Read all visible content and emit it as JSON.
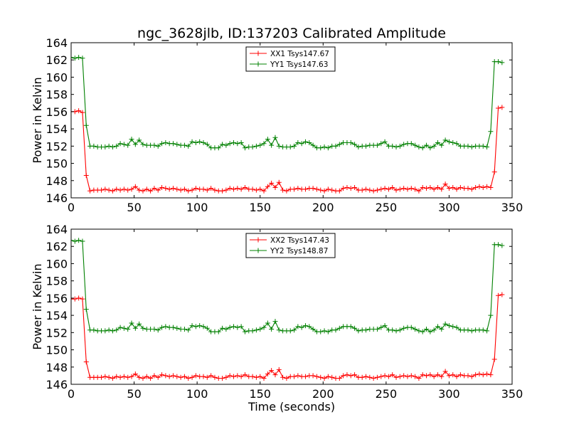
{
  "title": "ngc_3628jlb, ID:137203 Calibrated Amplitude",
  "colors": {
    "xx": "#ff0000",
    "yy": "#008000",
    "axes": "#000000",
    "background": "#ffffff"
  },
  "chart_data": [
    {
      "type": "line",
      "title": "ngc_3628jlb, ID:137203 Calibrated Amplitude",
      "xlabel": "",
      "ylabel": "Power in Kelvin",
      "xlim": [
        0,
        350
      ],
      "ylim": [
        146,
        164
      ],
      "xticks": [
        "0",
        "50",
        "100",
        "150",
        "200",
        "250",
        "300",
        "350"
      ],
      "yticks": [
        "146",
        "148",
        "150",
        "152",
        "154",
        "156",
        "158",
        "160",
        "162",
        "164"
      ],
      "grid": false,
      "legend": "top-center",
      "marker": "+",
      "x": [
        0,
        3,
        6,
        9,
        12,
        15,
        18,
        21,
        24,
        27,
        30,
        33,
        36,
        39,
        42,
        45,
        48,
        51,
        54,
        57,
        60,
        63,
        66,
        69,
        72,
        75,
        78,
        81,
        84,
        87,
        90,
        93,
        96,
        99,
        102,
        105,
        108,
        111,
        114,
        117,
        120,
        123,
        126,
        129,
        132,
        135,
        138,
        141,
        144,
        147,
        150,
        153,
        156,
        159,
        162,
        165,
        168,
        171,
        174,
        177,
        180,
        183,
        186,
        189,
        192,
        195,
        198,
        201,
        204,
        207,
        210,
        213,
        216,
        219,
        222,
        225,
        228,
        231,
        234,
        237,
        240,
        243,
        246,
        249,
        252,
        255,
        258,
        261,
        264,
        267,
        270,
        273,
        276,
        279,
        282,
        285,
        288,
        291,
        294,
        297,
        300,
        303,
        306,
        309,
        312,
        315,
        318,
        321,
        324,
        327,
        330,
        333,
        336,
        339,
        342
      ],
      "series": [
        {
          "name": "XX1 Tsys147.67",
          "color": "#ff0000",
          "values": [
            156.0,
            156.0,
            156.1,
            155.9,
            148.6,
            146.8,
            146.9,
            146.9,
            146.9,
            147.0,
            146.9,
            146.8,
            147.0,
            146.9,
            147.0,
            146.9,
            147.0,
            147.3,
            146.9,
            146.8,
            147.0,
            146.8,
            147.1,
            146.9,
            147.2,
            147.1,
            147.0,
            147.1,
            147.0,
            146.9,
            147.0,
            146.8,
            146.9,
            147.1,
            147.0,
            147.0,
            146.9,
            147.1,
            146.9,
            146.8,
            146.8,
            146.9,
            147.1,
            147.0,
            147.1,
            147.0,
            147.2,
            147.0,
            147.0,
            146.9,
            147.0,
            146.8,
            147.3,
            147.7,
            147.2,
            147.8,
            146.9,
            146.8,
            147.0,
            147.0,
            147.1,
            147.0,
            147.0,
            147.1,
            147.1,
            147.0,
            146.9,
            146.8,
            147.0,
            146.9,
            146.8,
            146.8,
            147.1,
            147.2,
            147.1,
            147.2,
            146.9,
            146.9,
            147.0,
            146.9,
            146.8,
            146.9,
            147.0,
            147.1,
            147.0,
            147.2,
            146.9,
            147.0,
            147.1,
            147.0,
            147.1,
            147.0,
            146.8,
            147.2,
            147.1,
            147.2,
            147.0,
            147.2,
            147.0,
            147.6,
            147.1,
            147.2,
            147.0,
            147.2,
            147.1,
            147.1,
            147.0,
            147.2,
            147.3,
            147.2,
            147.3,
            147.2,
            149.0,
            156.4,
            156.5
          ]
        },
        {
          "name": "YY1 Tsys147.63",
          "color": "#008000",
          "values": [
            162.3,
            162.2,
            162.3,
            162.2,
            154.4,
            152.0,
            152.0,
            151.9,
            151.9,
            151.9,
            152.0,
            151.9,
            152.0,
            152.3,
            152.2,
            152.1,
            152.8,
            152.2,
            152.7,
            152.2,
            152.1,
            152.1,
            152.1,
            152.0,
            152.3,
            152.4,
            152.3,
            152.3,
            152.2,
            152.1,
            152.1,
            152.0,
            152.5,
            152.4,
            152.5,
            152.4,
            152.2,
            151.8,
            151.8,
            151.8,
            152.2,
            152.1,
            152.3,
            152.4,
            152.3,
            152.4,
            151.8,
            151.9,
            151.9,
            152.0,
            152.1,
            152.3,
            152.8,
            152.1,
            153.0,
            152.0,
            151.9,
            151.9,
            151.9,
            152.0,
            152.4,
            152.3,
            152.5,
            152.4,
            152.1,
            151.8,
            151.8,
            151.9,
            151.8,
            152.0,
            152.0,
            152.2,
            152.4,
            152.4,
            152.4,
            152.2,
            151.9,
            152.0,
            152.0,
            152.1,
            152.1,
            152.1,
            152.3,
            152.5,
            152.0,
            152.0,
            151.9,
            152.0,
            152.2,
            152.3,
            152.3,
            152.1,
            151.9,
            151.8,
            152.1,
            151.8,
            152.0,
            152.4,
            152.1,
            152.7,
            152.5,
            152.4,
            152.3,
            152.0,
            152.0,
            152.0,
            151.9,
            152.0,
            152.0,
            152.0,
            151.9,
            153.7,
            161.8,
            161.8,
            161.7
          ]
        }
      ]
    },
    {
      "type": "line",
      "title": "",
      "xlabel": "Time (seconds)",
      "ylabel": "Power in Kelvin",
      "xlim": [
        0,
        350
      ],
      "ylim": [
        146,
        164
      ],
      "xticks": [
        "0",
        "50",
        "100",
        "150",
        "200",
        "250",
        "300",
        "350"
      ],
      "yticks": [
        "146",
        "148",
        "150",
        "152",
        "154",
        "156",
        "158",
        "160",
        "162",
        "164"
      ],
      "grid": false,
      "legend": "top-center",
      "marker": "+",
      "x": [
        0,
        3,
        6,
        9,
        12,
        15,
        18,
        21,
        24,
        27,
        30,
        33,
        36,
        39,
        42,
        45,
        48,
        51,
        54,
        57,
        60,
        63,
        66,
        69,
        72,
        75,
        78,
        81,
        84,
        87,
        90,
        93,
        96,
        99,
        102,
        105,
        108,
        111,
        114,
        117,
        120,
        123,
        126,
        129,
        132,
        135,
        138,
        141,
        144,
        147,
        150,
        153,
        156,
        159,
        162,
        165,
        168,
        171,
        174,
        177,
        180,
        183,
        186,
        189,
        192,
        195,
        198,
        201,
        204,
        207,
        210,
        213,
        216,
        219,
        222,
        225,
        228,
        231,
        234,
        237,
        240,
        243,
        246,
        249,
        252,
        255,
        258,
        261,
        264,
        267,
        270,
        273,
        276,
        279,
        282,
        285,
        288,
        291,
        294,
        297,
        300,
        303,
        306,
        309,
        312,
        315,
        318,
        321,
        324,
        327,
        330,
        333,
        336,
        339,
        342
      ],
      "series": [
        {
          "name": "XX2 Tsys147.43",
          "color": "#ff0000",
          "values": [
            155.9,
            155.9,
            156.0,
            155.9,
            148.6,
            146.8,
            146.8,
            146.8,
            146.8,
            146.9,
            146.8,
            146.7,
            146.9,
            146.8,
            146.9,
            146.8,
            146.9,
            147.2,
            146.8,
            146.7,
            146.9,
            146.7,
            147.0,
            146.8,
            147.1,
            147.0,
            146.9,
            147.0,
            146.9,
            146.8,
            146.9,
            146.7,
            146.8,
            147.0,
            146.9,
            146.9,
            146.8,
            147.0,
            146.8,
            146.7,
            146.7,
            146.8,
            147.0,
            146.9,
            147.0,
            146.9,
            147.1,
            146.9,
            146.9,
            146.8,
            146.9,
            146.7,
            147.2,
            147.6,
            147.1,
            147.7,
            146.8,
            146.7,
            146.9,
            146.9,
            147.0,
            146.9,
            146.9,
            147.0,
            147.0,
            146.9,
            146.8,
            146.7,
            146.9,
            146.8,
            146.7,
            146.7,
            147.0,
            147.1,
            147.0,
            147.1,
            146.8,
            146.8,
            146.9,
            146.8,
            146.7,
            146.8,
            146.9,
            147.0,
            146.9,
            147.1,
            146.8,
            146.9,
            147.0,
            146.9,
            147.0,
            146.9,
            146.7,
            147.1,
            147.0,
            147.1,
            146.9,
            147.1,
            146.9,
            147.5,
            147.0,
            147.1,
            146.9,
            147.1,
            147.0,
            147.0,
            146.9,
            147.1,
            147.2,
            147.1,
            147.2,
            147.1,
            148.9,
            156.3,
            156.4
          ]
        },
        {
          "name": "YY2 Tsys148.87",
          "color": "#008000",
          "values": [
            162.7,
            162.6,
            162.7,
            162.6,
            154.7,
            152.3,
            152.3,
            152.2,
            152.2,
            152.2,
            152.3,
            152.2,
            152.3,
            152.6,
            152.5,
            152.4,
            153.1,
            152.5,
            153.0,
            152.5,
            152.4,
            152.4,
            152.4,
            152.3,
            152.6,
            152.7,
            152.6,
            152.6,
            152.5,
            152.4,
            152.4,
            152.3,
            152.8,
            152.7,
            152.8,
            152.7,
            152.5,
            152.1,
            152.1,
            152.1,
            152.5,
            152.4,
            152.6,
            152.7,
            152.6,
            152.7,
            152.1,
            152.2,
            152.2,
            152.3,
            152.4,
            152.6,
            153.1,
            152.4,
            153.3,
            152.3,
            152.2,
            152.2,
            152.2,
            152.3,
            152.7,
            152.6,
            152.8,
            152.7,
            152.4,
            152.1,
            152.1,
            152.2,
            152.1,
            152.3,
            152.3,
            152.5,
            152.7,
            152.7,
            152.7,
            152.5,
            152.2,
            152.3,
            152.3,
            152.4,
            152.4,
            152.4,
            152.6,
            152.8,
            152.3,
            152.3,
            152.2,
            152.3,
            152.5,
            152.6,
            152.6,
            152.4,
            152.2,
            152.1,
            152.4,
            152.1,
            152.3,
            152.7,
            152.4,
            153.0,
            152.8,
            152.7,
            152.6,
            152.3,
            152.3,
            152.3,
            152.2,
            152.3,
            152.3,
            152.3,
            152.2,
            154.0,
            162.2,
            162.2,
            162.1
          ]
        }
      ]
    }
  ]
}
